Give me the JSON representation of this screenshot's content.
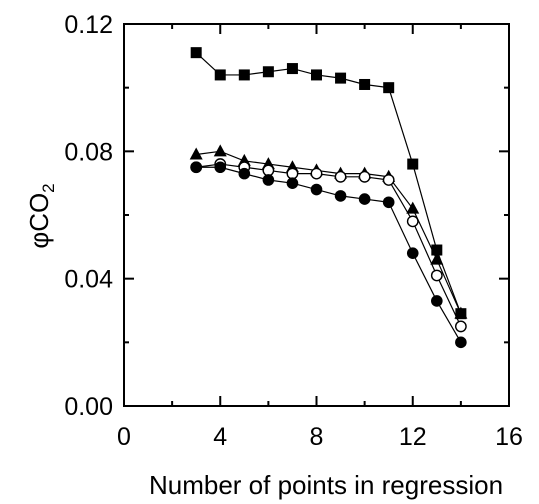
{
  "chart_data": {
    "type": "scatter",
    "title": "",
    "xlabel": "Number of points in regression",
    "ylabel": {
      "main": "φCO",
      "sub": "2"
    },
    "xlim": [
      0,
      16
    ],
    "ylim": [
      0.0,
      0.12
    ],
    "x_ticks": [
      0,
      4,
      8,
      12,
      16
    ],
    "x_tick_labels": [
      "0",
      "4",
      "8",
      "12",
      "16"
    ],
    "y_ticks": [
      0.0,
      0.04,
      0.08,
      0.12
    ],
    "y_tick_labels": [
      "0.00",
      "0.04",
      "0.08",
      "0.12"
    ],
    "grid": false,
    "legend": "none",
    "series": [
      {
        "marker": "filled-square",
        "x": [
          3,
          4,
          5,
          6,
          7,
          8,
          9,
          10,
          11,
          12,
          13,
          14
        ],
        "y": [
          0.111,
          0.104,
          0.104,
          0.105,
          0.106,
          0.104,
          0.103,
          0.101,
          0.1,
          0.076,
          0.049,
          0.029
        ]
      },
      {
        "marker": "filled-triangle",
        "x": [
          3,
          4,
          5,
          6,
          7,
          8,
          9,
          10,
          11,
          12,
          13,
          14
        ],
        "y": [
          0.079,
          0.08,
          0.077,
          0.076,
          0.075,
          0.074,
          0.073,
          0.073,
          0.072,
          0.062,
          0.046,
          0.029
        ]
      },
      {
        "marker": "open-circle",
        "x": [
          3,
          4,
          5,
          6,
          7,
          8,
          9,
          10,
          11,
          12,
          13,
          14
        ],
        "y": [
          0.075,
          0.076,
          0.075,
          0.074,
          0.073,
          0.073,
          0.072,
          0.072,
          0.071,
          0.058,
          0.041,
          0.025
        ]
      },
      {
        "marker": "filled-circle",
        "x": [
          3,
          4,
          5,
          6,
          7,
          8,
          9,
          10,
          11,
          12,
          13,
          14
        ],
        "y": [
          0.075,
          0.075,
          0.073,
          0.071,
          0.07,
          0.068,
          0.066,
          0.065,
          0.064,
          0.048,
          0.033,
          0.02
        ]
      }
    ]
  }
}
